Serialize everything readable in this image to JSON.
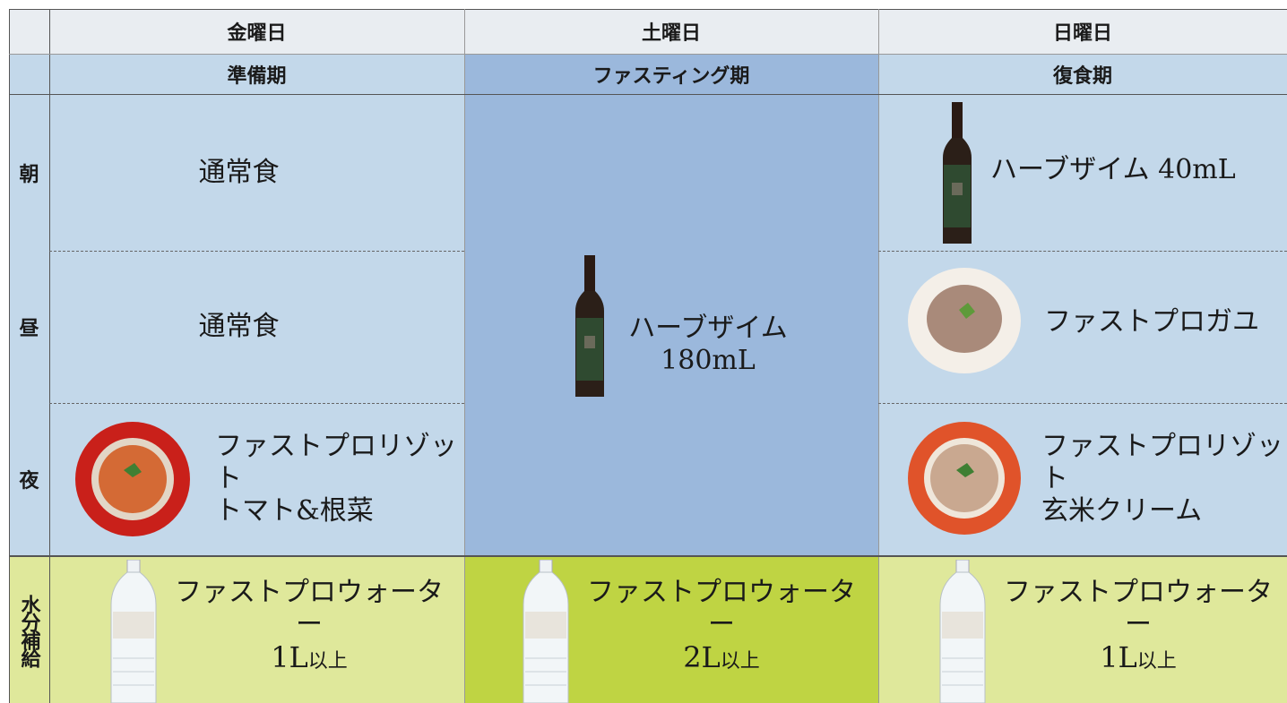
{
  "table": {
    "days": [
      "金曜日",
      "土曜日",
      "日曜日"
    ],
    "phases": [
      "準備期",
      "ファスティング期",
      "復食期"
    ],
    "meals": [
      "朝",
      "昼",
      "夜"
    ],
    "water_label": "水分補給",
    "friday": {
      "breakfast": "通常食",
      "lunch": "通常食",
      "dinner": [
        "ファストプロリゾット",
        "トマト&根菜"
      ]
    },
    "saturday": {
      "fasting": [
        "ハーブザイム",
        "180mL"
      ]
    },
    "sunday": {
      "breakfast": "ハーブザイム 40mL",
      "lunch": "ファストプロガユ",
      "dinner": [
        "ファストプロリゾット",
        "玄米クリーム"
      ]
    },
    "water": [
      {
        "name": "ファストプロウォーター",
        "amount": "1L",
        "suffix": "以上"
      },
      {
        "name": "ファストプロウォーター",
        "amount": "2L",
        "suffix": "以上"
      },
      {
        "name": "ファストプロウォーター",
        "amount": "1L",
        "suffix": "以上"
      }
    ]
  }
}
